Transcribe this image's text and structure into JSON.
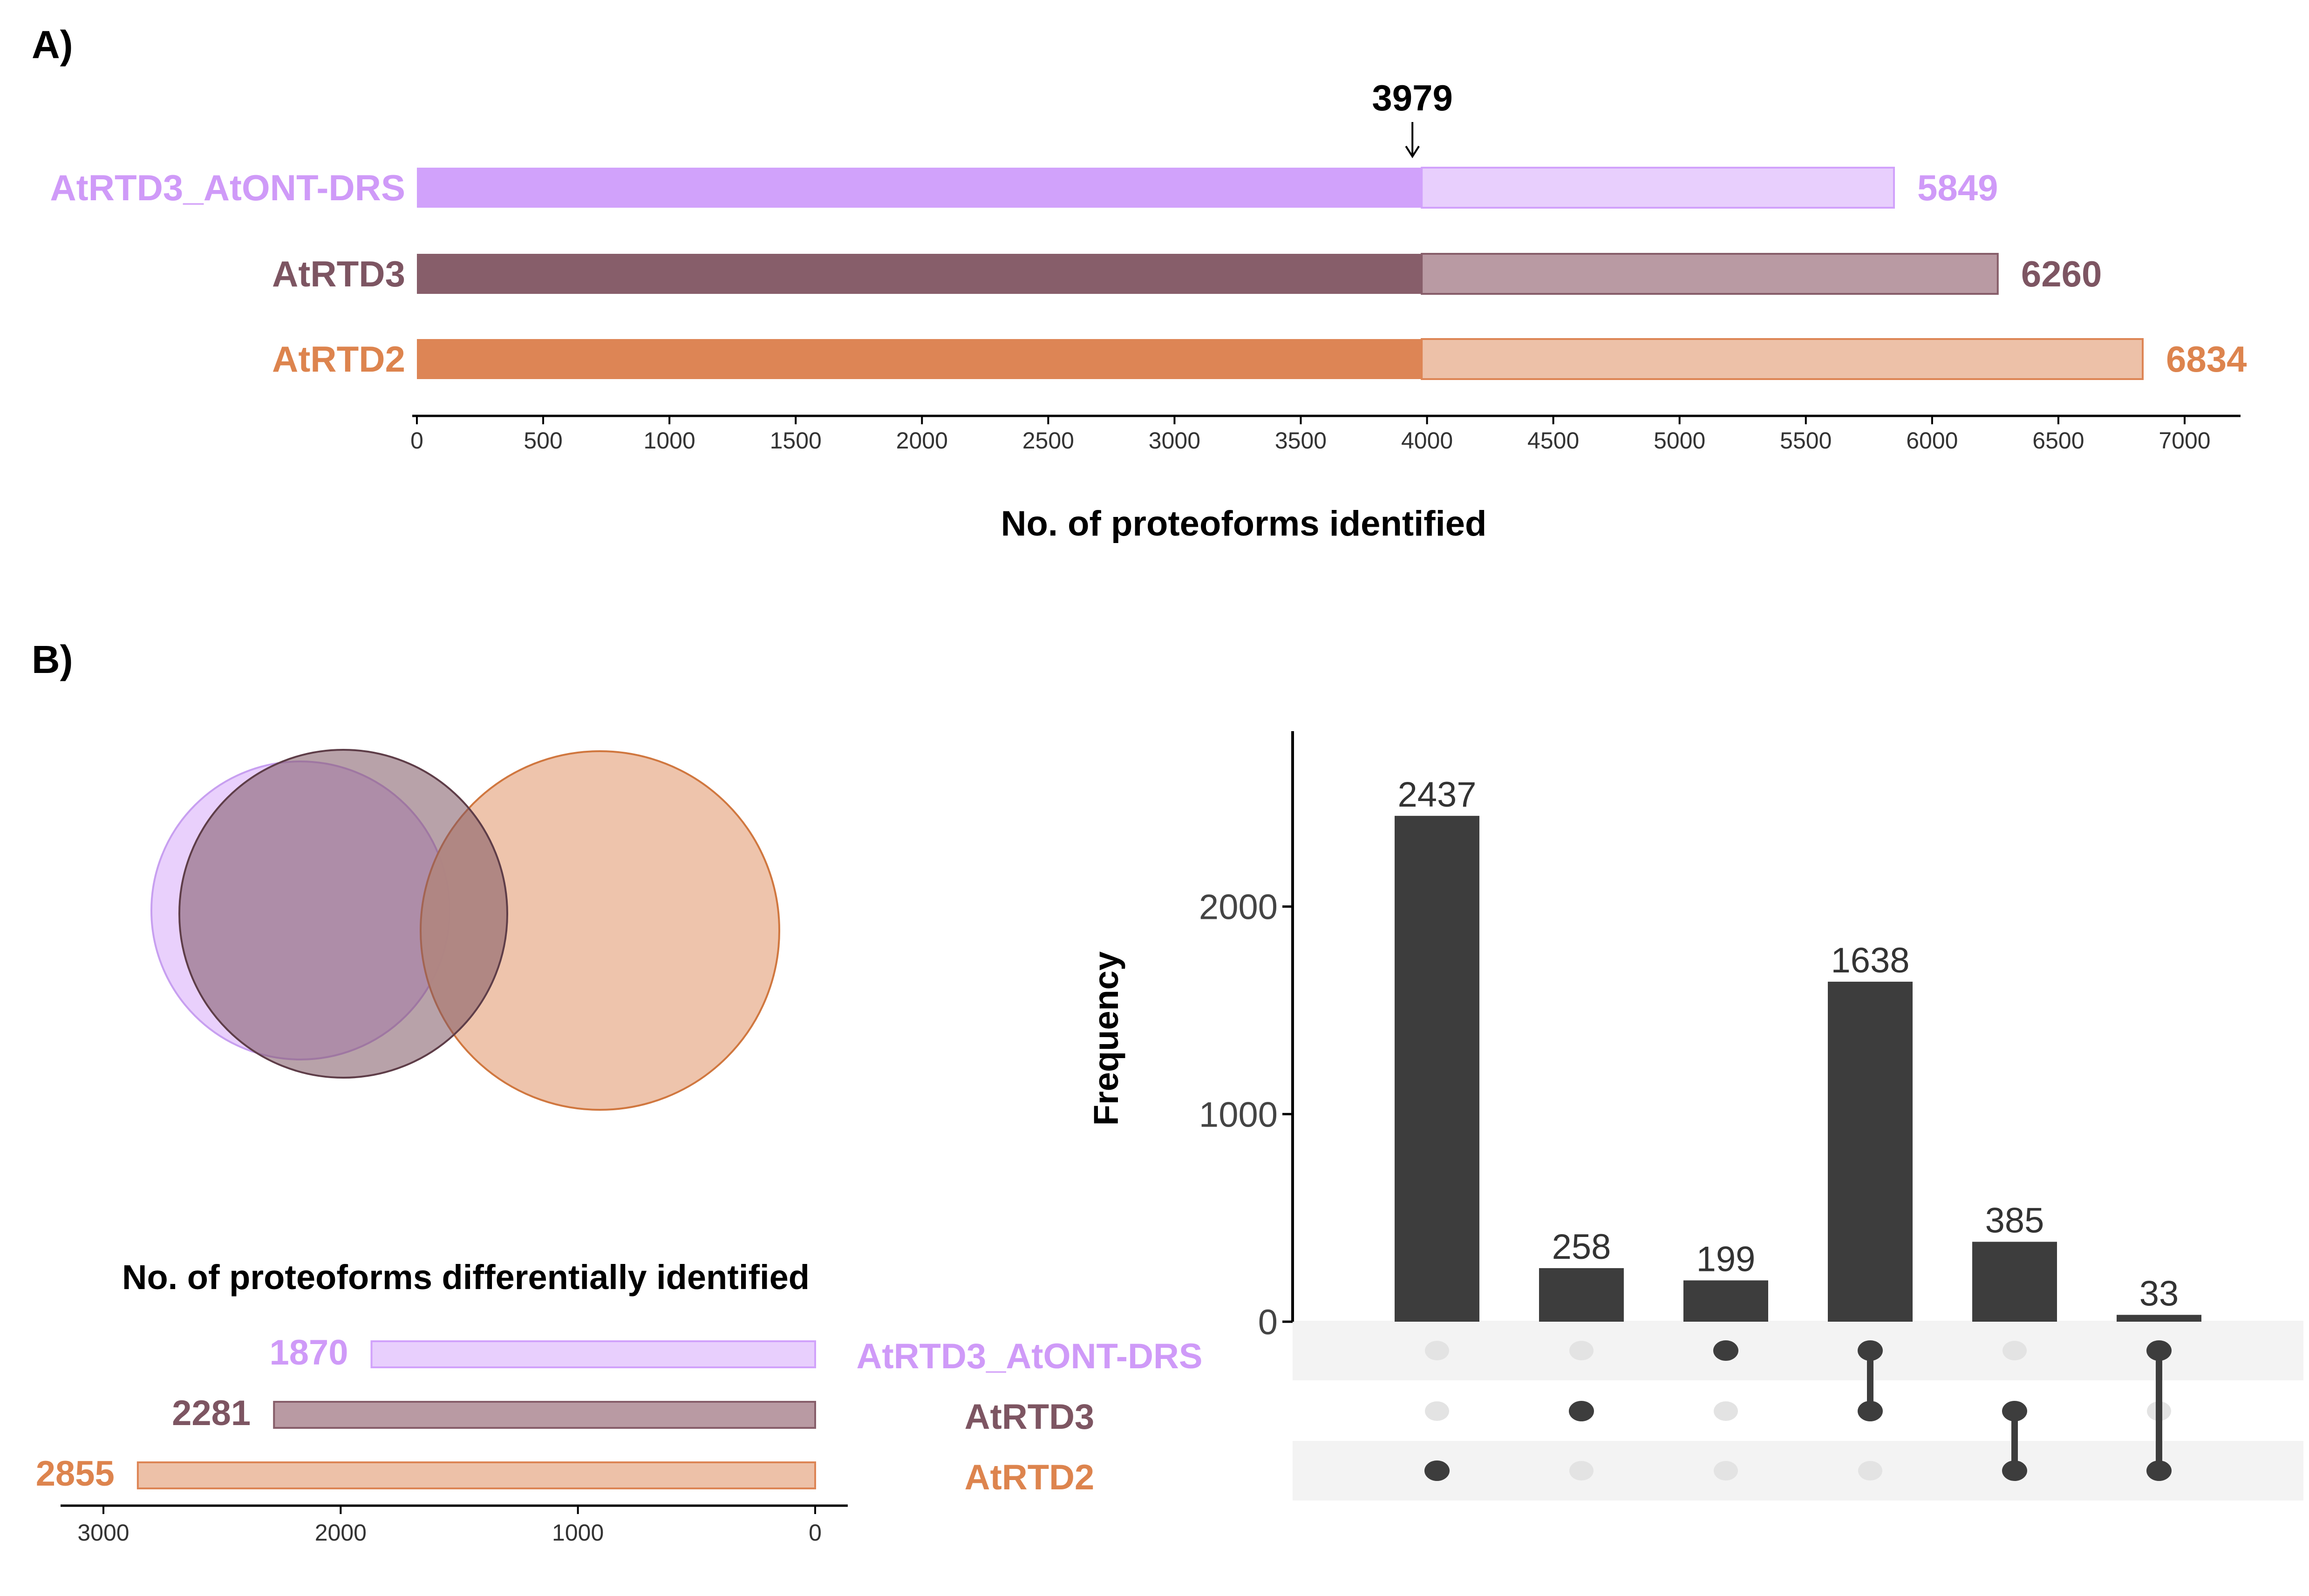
{
  "chart_data": [
    {
      "panel_label": "A)",
      "type": "bar",
      "orientation": "horizontal",
      "stacked": true,
      "categories": [
        "AtRTD3_AtONT-DRS",
        "AtRTD3",
        "AtRTD2"
      ],
      "totals": [
        5849,
        6260,
        6834
      ],
      "series": [
        {
          "values": [
            3979,
            3979,
            3979
          ]
        },
        {
          "values": [
            1870,
            2281,
            2855
          ]
        }
      ],
      "annotation": "3979",
      "xlabel": "No. of proteoforms identified",
      "xlim": [
        0,
        7000
      ],
      "xticks": [
        "0",
        "500",
        "1000",
        "1500",
        "2000",
        "2500",
        "3000",
        "3500",
        "4000",
        "4500",
        "5000",
        "5500",
        "6000",
        "6500",
        "7000"
      ],
      "colors": {
        "AtRTD3_AtONT-DRS": {
          "dark": "#d1a2fb",
          "light": "#e8cffd",
          "label": "#cf9af8"
        },
        "AtRTD3": {
          "dark": "#875e6a",
          "light": "#b99aa3",
          "label": "#7d5562"
        },
        "AtRTD2": {
          "dark": "#dd8555",
          "light": "#edc1a8",
          "label": "#dd844e"
        }
      }
    },
    {
      "panel_label": "B)",
      "type": "venn",
      "sets": [
        "AtRTD3_AtONT-DRS",
        "AtRTD3",
        "AtRTD2"
      ],
      "colors": {
        "AtRTD3_AtONT-DRS": "#e3c4fb",
        "AtRTD3": "#7d5562",
        "AtRTD2": "#edc1a8"
      }
    },
    {
      "type": "bar",
      "orientation": "horizontal",
      "reversed": true,
      "title": "No. of proteoforms differentially identified",
      "categories": [
        "AtRTD3_AtONT-DRS",
        "AtRTD3",
        "AtRTD2"
      ],
      "values": [
        1870,
        2281,
        2855
      ],
      "xlim": [
        0,
        3000
      ],
      "xticks": [
        "3000",
        "2000",
        "1000",
        "0"
      ]
    },
    {
      "type": "bar",
      "subtype": "upset",
      "ylabel": "Frequency",
      "ylim": [
        0,
        2800
      ],
      "yticks": [
        "0",
        "1000",
        "2000"
      ],
      "values": [
        2437,
        258,
        199,
        1638,
        385,
        33
      ],
      "matrix_rows": [
        "AtRTD3_AtONT-DRS",
        "AtRTD3",
        "AtRTD2"
      ],
      "memberships": [
        [
          2
        ],
        [
          1
        ],
        [
          0
        ],
        [
          0,
          1
        ],
        [
          1,
          2
        ],
        [
          0,
          2
        ]
      ],
      "colors": {
        "bar": "#3d3d3d",
        "dot_on": "#3d3d3d",
        "dot_off": "#e3e3e3",
        "stripe": "#f3f3f3"
      }
    }
  ]
}
